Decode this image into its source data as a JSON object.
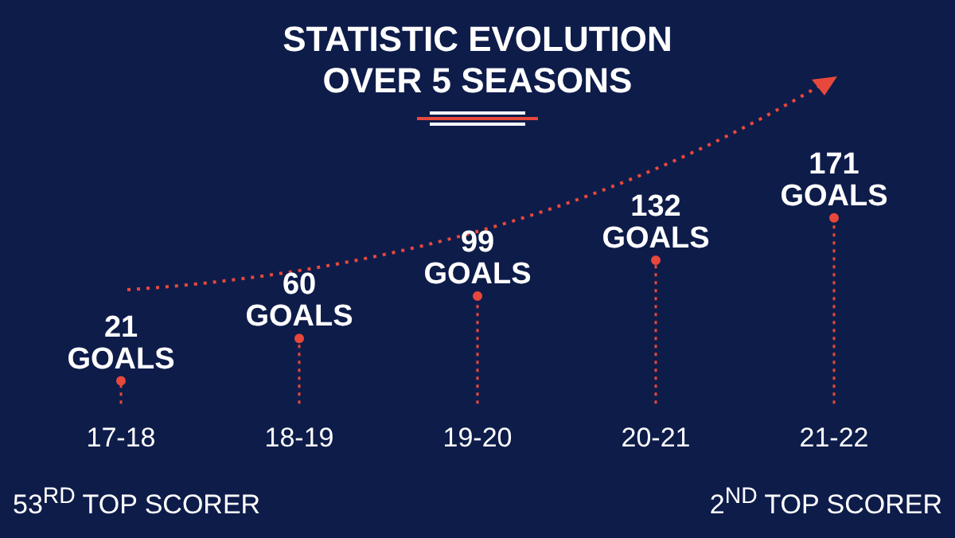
{
  "chart_data": {
    "type": "lollipop",
    "title": "STATISTIC EVOLUTION OVER 5 SEASONS",
    "categories": [
      "17-18",
      "18-19",
      "19-20",
      "20-21",
      "21-22"
    ],
    "values": [
      21,
      60,
      99,
      132,
      171
    ],
    "value_labels": [
      "21 GOALS",
      "60 GOALS",
      "99 GOALS",
      "132 GOALS",
      "171 GOALS"
    ],
    "color": "#e8483c",
    "line_style": "dotted",
    "marker": "circle",
    "tick_labels": "x",
    "legend": false,
    "annotations": [
      "53$^{RD}$ TOP SCORER",
      "2$^{ND}$ TOP SCORER"
    ]
  }
}
